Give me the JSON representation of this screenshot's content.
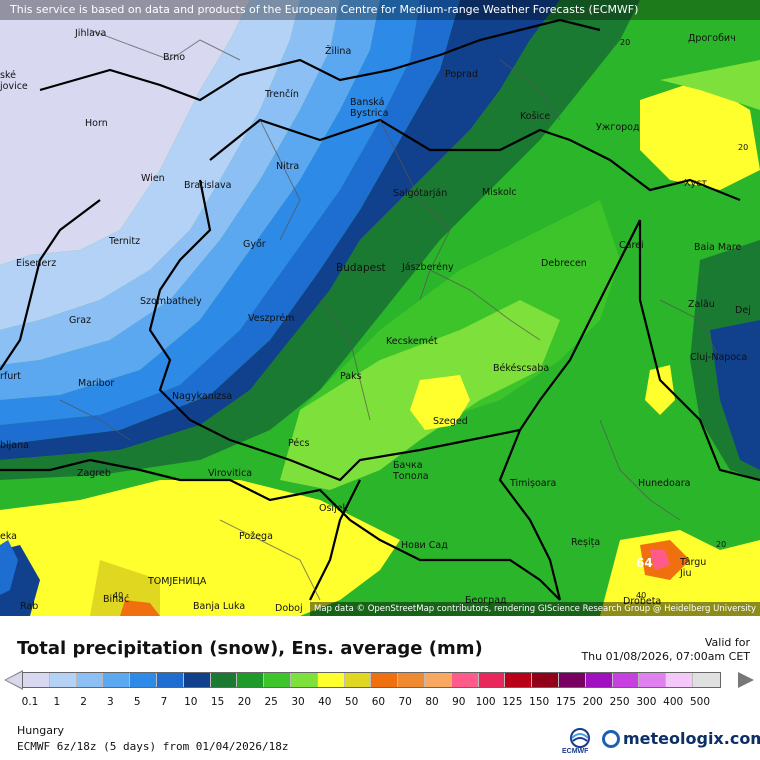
{
  "disclaimer": "This service is based on data and products of the European Centre for Medium-range Weather Forecasts (ECMWF)",
  "attribution": "Map data © OpenStreetMap contributors, rendering GIScience Research Group @ Heidelberg University",
  "title": "Total precipitation (snow), Ens. average (mm)",
  "valid_label": "Valid for",
  "valid_time": "Thu 01/08/2026, 07:00am CET",
  "region": "Hungary",
  "model_run": "ECMWF 6z/18z (5 days) from 01/04/2026/18z",
  "logos": {
    "ecmwf": "ECMWF",
    "meteologix": "meteologix.com"
  },
  "scale": {
    "ticks": [
      "0.1",
      "1",
      "2",
      "3",
      "5",
      "7",
      "10",
      "15",
      "20",
      "25",
      "30",
      "40",
      "50",
      "60",
      "70",
      "80",
      "90",
      "100",
      "125",
      "150",
      "175",
      "200",
      "250",
      "300",
      "400",
      "500"
    ],
    "colors": [
      "#d8d8f0",
      "#b4d2f5",
      "#8cc0f5",
      "#5ca8f0",
      "#2d8ae6",
      "#1d6ed0",
      "#11408c",
      "#1b7a32",
      "#1f9a2a",
      "#3cc42a",
      "#7ee03a",
      "#ffff2e",
      "#e0d820",
      "#f07010",
      "#f08a30",
      "#f8a860",
      "#ff5a8a",
      "#e8285a",
      "#b80018",
      "#900018",
      "#780060",
      "#a010c0",
      "#c840e0",
      "#e080f0",
      "#f4c8f8",
      "#e0e0e0"
    ],
    "over_color": "#777777"
  },
  "cities": [
    {
      "name": "Jihlava"
    },
    {
      "name": "Brno"
    },
    {
      "name": "Žilina"
    },
    {
      "name": "Poprad"
    },
    {
      "name": "Дрогобич"
    },
    {
      "name": "Trenčín"
    },
    {
      "name": "Banská Bystrica"
    },
    {
      "name": "Košice"
    },
    {
      "name": "Ужгород"
    },
    {
      "name": "Horn"
    },
    {
      "name": "Nitra"
    },
    {
      "name": "Wien"
    },
    {
      "name": "Bratislava"
    },
    {
      "name": "Salgótarján"
    },
    {
      "name": "Miskolc"
    },
    {
      "name": "Хуст"
    },
    {
      "name": "Ternitz"
    },
    {
      "name": "Győr"
    },
    {
      "name": "Carei"
    },
    {
      "name": "Baia Mare"
    },
    {
      "name": "Budapest"
    },
    {
      "name": "Jászberény"
    },
    {
      "name": "Debrecen"
    },
    {
      "name": "Eisenerz"
    },
    {
      "name": "Szombathely"
    },
    {
      "name": "Zalău"
    },
    {
      "name": "Graz"
    },
    {
      "name": "Veszprém"
    },
    {
      "name": "Kecskemét"
    },
    {
      "name": "Cluj-Napoca"
    },
    {
      "name": "Paks"
    },
    {
      "name": "Békéscsaba"
    },
    {
      "name": "Maribor"
    },
    {
      "name": "Nagykanizsa"
    },
    {
      "name": "Szeged"
    },
    {
      "name": "Pécs"
    },
    {
      "name": "Zagreb"
    },
    {
      "name": "Virovitica"
    },
    {
      "name": "Бачка Топола"
    },
    {
      "name": "Timișoara"
    },
    {
      "name": "Hunedoara"
    },
    {
      "name": "Osijek"
    },
    {
      "name": "Požega"
    },
    {
      "name": "Нови Сад"
    },
    {
      "name": "Reșița"
    },
    {
      "name": "Târgu Jiu"
    },
    {
      "name": "ТОМЈЕНИЦА"
    },
    {
      "name": "Bihać"
    },
    {
      "name": "Banja Luka"
    },
    {
      "name": "Doboj"
    },
    {
      "name": "Београд"
    },
    {
      "name": "Drobeta"
    },
    {
      "name": "Dej"
    },
    {
      "name": "Rab"
    },
    {
      "name": "rfurt"
    },
    {
      "name": "bljana"
    },
    {
      "name": "ské jovice"
    },
    {
      "name": "eka"
    }
  ],
  "map_numbers": [
    "20",
    "20",
    "40",
    "20",
    "64",
    "40"
  ]
}
